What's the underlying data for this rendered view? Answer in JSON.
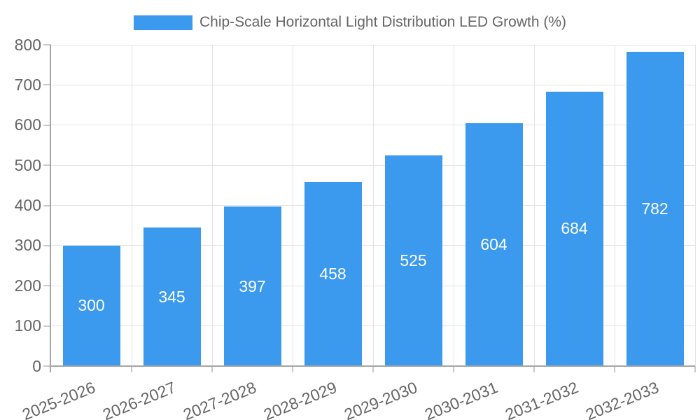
{
  "chart_data": {
    "type": "bar",
    "title": "Chip-Scale Horizontal Light Distribution LED Growth (%)",
    "categories": [
      "2025-2026",
      "2026-2027",
      "2027-2028",
      "2028-2029",
      "2029-2030",
      "2030-2031",
      "2031-2032",
      "2032-2033"
    ],
    "series": [
      {
        "name": "Chip-Scale Horizontal Light Distribution LED Growth (%)",
        "values": [
          300,
          345,
          397,
          458,
          525,
          604,
          684,
          782
        ]
      }
    ],
    "xlabel": "",
    "ylabel": "",
    "ylim": [
      0,
      800
    ],
    "y_ticks": [
      0,
      100,
      200,
      300,
      400,
      500,
      600,
      700,
      800
    ],
    "grid": true,
    "legend_position": "top",
    "value_labels": "centered-white-inside-bars",
    "colors": {
      "bar": "#3b99ee",
      "text": "#666666",
      "value_label": "#ffffff",
      "gridline": "#e3e3e3",
      "axis": "#a6a6a6",
      "tick": "#c9c9c9"
    }
  }
}
